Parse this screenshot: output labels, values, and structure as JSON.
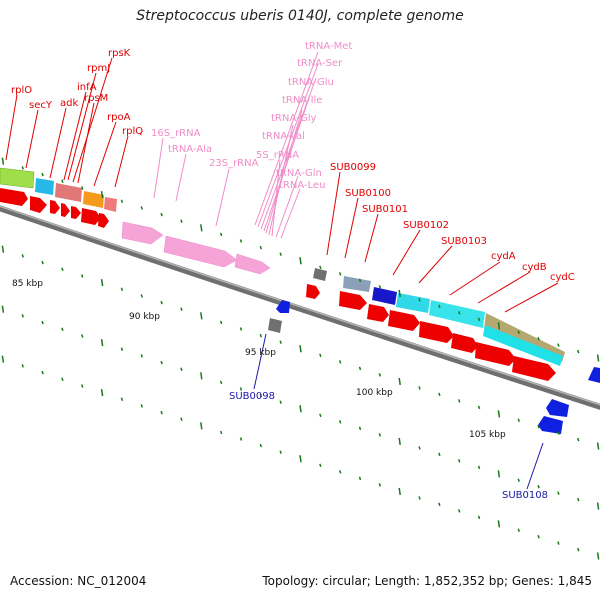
{
  "title": "Streptococcus uberis 0140J, complete genome",
  "footer": {
    "accession": "Accession: NC_012004",
    "topology": "Topology: circular; Length: 1,852,352 bp; Genes: 1,845"
  },
  "colors": {
    "backbone": "#8a8a8a",
    "red_label": "#d40000",
    "pink_label": "#f08cc8",
    "blue_label": "#1a1aa8",
    "tick": "#1a7a1a"
  },
  "scale_labels": [
    "85 kbp",
    "90 kbp",
    "95 kbp",
    "100 kbp",
    "105 kbp"
  ],
  "red_gene_labels": [
    "rplO",
    "secY",
    "adk",
    "infA",
    "rpmJ",
    "rpsK",
    "rpsM",
    "rpoA",
    "rplQ",
    "SUB0099",
    "SUB0100",
    "SUB0101",
    "SUB0102",
    "SUB0103",
    "cydA",
    "cydB",
    "cydC"
  ],
  "rna_labels": [
    "tRNA-Met",
    "tRNA-Ser",
    "tRNA-Glu",
    "tRNA-Ile",
    "tRNA-Gly",
    "tRNA-Val",
    "5S_rRNA",
    "tRNA-Gln",
    "tRNA-Leu",
    "16S_rRNA",
    "tRNA-Ala",
    "23S_rRNA"
  ],
  "reverse_gene_labels": [
    "SUB0098",
    "SUB0108"
  ]
}
